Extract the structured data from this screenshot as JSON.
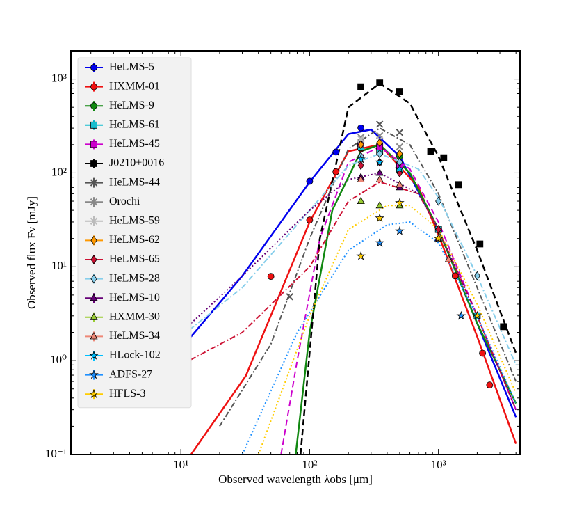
{
  "chart_data": {
    "type": "scatter",
    "log_x": true,
    "log_y": true,
    "xlabel": "Observed wavelength λobs [μm]",
    "ylabel": "Observed flux Fν [mJy]",
    "xlim": [
      1.4,
      4300
    ],
    "ylim": [
      0.1,
      2000
    ],
    "xticks": [
      {
        "value": 10,
        "label": "10¹"
      },
      {
        "value": 100,
        "label": "10²"
      },
      {
        "value": 1000,
        "label": "10³"
      }
    ],
    "yticks": [
      {
        "value": 0.1,
        "label": "10⁻¹"
      },
      {
        "value": 1,
        "label": "10⁰"
      },
      {
        "value": 10,
        "label": "10¹"
      },
      {
        "value": 100,
        "label": "10²"
      },
      {
        "value": 1000,
        "label": "10³"
      }
    ],
    "legend": "upper left",
    "series": [
      {
        "name": "HeLMS-5",
        "color": "#0000ee",
        "marker": "circle",
        "x": [
          100,
          160,
          250
        ],
        "values": [
          81.5,
          167,
          302
        ],
        "linestyle": "solid",
        "model_x": [
          12,
          30,
          100,
          200,
          300,
          500,
          1000,
          2000,
          4000
        ],
        "model_y": [
          1.8,
          8,
          80,
          260,
          290,
          150,
          25,
          2.5,
          0.25
        ]
      },
      {
        "name": "HXMM-01",
        "color": "#ee1111",
        "marker": "circle",
        "x": [
          50,
          100,
          160,
          250,
          1350,
          2200,
          2500
        ],
        "values": [
          7.9,
          31.5,
          103,
          181,
          8,
          1.2,
          0.55
        ],
        "linestyle": "solid",
        "model_x": [
          12,
          32,
          100,
          200,
          350,
          700,
          1000,
          2000,
          4000
        ],
        "model_y": [
          0.1,
          0.69,
          30,
          170,
          200,
          70,
          22,
          1.8,
          0.13
        ]
      },
      {
        "name": "HeLMS-9",
        "color": "#118811",
        "marker": "circle",
        "x": [
          250,
          350,
          500
        ],
        "values": [
          185,
          200,
          150
        ],
        "linestyle": "solid",
        "model_x": [
          78,
          100,
          150,
          250,
          350,
          600,
          1000,
          2000,
          4000
        ],
        "model_y": [
          0.1,
          2,
          40,
          170,
          200,
          100,
          25,
          2.5,
          0.35
        ]
      },
      {
        "name": "HeLMS-61",
        "color": "#17becf",
        "marker": "square",
        "x": [
          250,
          350,
          500,
          1000,
          2000
        ],
        "values": [
          190,
          170,
          110,
          25,
          3
        ]
      },
      {
        "name": "HeLMS-45",
        "color": "#cc00cc",
        "marker": "square",
        "x": [
          250,
          350,
          500
        ],
        "values": [
          200,
          190,
          120
        ],
        "linestyle": "dashed",
        "model_x": [
          60,
          80,
          120,
          200,
          350,
          600,
          1000,
          2000,
          4000
        ],
        "model_y": [
          0.1,
          1,
          20,
          130,
          190,
          110,
          30,
          3,
          0.3
        ]
      },
      {
        "name": "J0210+0016",
        "color": "#000000",
        "marker": "square",
        "x": [
          250,
          350,
          500,
          870,
          1100,
          1430,
          2100,
          3200
        ],
        "values": [
          827,
          910,
          730,
          170,
          145,
          75,
          17.5,
          2.3
        ],
        "linestyle": "dashed",
        "model_x": [
          85,
          120,
          200,
          350,
          600,
          1000,
          2000,
          4000
        ],
        "model_y": [
          0.1,
          20,
          500,
          900,
          550,
          150,
          15,
          1.2
        ]
      },
      {
        "name": "HeLMS-44",
        "color": "#555555",
        "marker": "x",
        "x": [
          70,
          250,
          350,
          500
        ],
        "values": [
          4.8,
          200,
          330,
          270
        ],
        "linestyle": "dashdot",
        "model_x": [
          20,
          50,
          100,
          200,
          350,
          600,
          1000,
          2000,
          4000
        ],
        "model_y": [
          0.2,
          1.5,
          20,
          180,
          300,
          200,
          60,
          6,
          0.6
        ]
      },
      {
        "name": "Orochi",
        "color": "#888888",
        "marker": "x",
        "x": [
          250,
          350,
          500
        ],
        "values": [
          240,
          250,
          190
        ]
      },
      {
        "name": "HeLMS-59",
        "color": "#bbbbbb",
        "marker": "x",
        "x": [
          250,
          350
        ],
        "values": [
          230,
          225
        ]
      },
      {
        "name": "HeLMS-62",
        "color": "#ff9900",
        "marker": "diamond",
        "x": [
          250,
          350,
          500
        ],
        "values": [
          200,
          210,
          160
        ]
      },
      {
        "name": "HeLMS-65",
        "color": "#cc1133",
        "marker": "diamond",
        "x": [
          250,
          350,
          500,
          1000
        ],
        "values": [
          120,
          130,
          100,
          25
        ],
        "linestyle": "dashdot",
        "model_x": [
          10,
          30,
          100,
          200,
          350,
          700,
          1000,
          2000,
          4000
        ],
        "model_y": [
          0.9,
          2,
          10,
          50,
          80,
          60,
          25,
          3,
          0.3
        ]
      },
      {
        "name": "HeLMS-28",
        "color": "#87ceeb",
        "marker": "diamond",
        "x": [
          250,
          350,
          500,
          1000,
          2000
        ],
        "values": [
          150,
          160,
          130,
          50,
          8
        ],
        "linestyle": "dashdot",
        "model_x": [
          10,
          30,
          100,
          200,
          350,
          700,
          1000,
          2000,
          4000
        ],
        "model_y": [
          1.8,
          6,
          40,
          120,
          160,
          110,
          55,
          8,
          0.9
        ]
      },
      {
        "name": "HeLMS-10",
        "color": "#660077",
        "marker": "triangle",
        "x": [
          250,
          350,
          500,
          1000
        ],
        "values": [
          90,
          100,
          70,
          20
        ],
        "linestyle": "dotted",
        "model_x": [
          12,
          30,
          100,
          200,
          350,
          700,
          1000,
          2000,
          4000
        ],
        "model_y": [
          2.5,
          8,
          40,
          85,
          100,
          60,
          25,
          3,
          0.3
        ]
      },
      {
        "name": "HXMM-30",
        "color": "#99cc33",
        "marker": "triangle",
        "x": [
          250,
          350,
          500
        ],
        "values": [
          50,
          45,
          45
        ]
      },
      {
        "name": "HeLMS-34",
        "color": "#ee8877",
        "marker": "triangle",
        "x": [
          250,
          350,
          500,
          1200
        ],
        "values": [
          85,
          85,
          75,
          12
        ]
      },
      {
        "name": "HLock-102",
        "color": "#00bfff",
        "marker": "star",
        "x": [
          250,
          350,
          500
        ],
        "values": [
          140,
          130,
          110
        ]
      },
      {
        "name": "ADFS-27",
        "color": "#1e90ff",
        "marker": "star",
        "x": [
          350,
          500,
          1500
        ],
        "values": [
          18,
          24,
          3
        ],
        "linestyle": "dotted",
        "model_x": [
          30,
          80,
          200,
          400,
          600,
          1000,
          2000,
          4000
        ],
        "model_y": [
          0.1,
          2,
          15,
          28,
          30,
          18,
          3,
          0.35
        ]
      },
      {
        "name": "HFLS-3",
        "color": "#ffcc00",
        "marker": "star",
        "x": [
          250,
          350,
          500,
          1000,
          2000
        ],
        "values": [
          13,
          33,
          48,
          20,
          3
        ],
        "linestyle": "dotted",
        "model_x": [
          40,
          100,
          200,
          400,
          600,
          1000,
          2000,
          4000
        ],
        "model_y": [
          0.1,
          3,
          25,
          45,
          45,
          25,
          4,
          0.45
        ]
      }
    ]
  }
}
